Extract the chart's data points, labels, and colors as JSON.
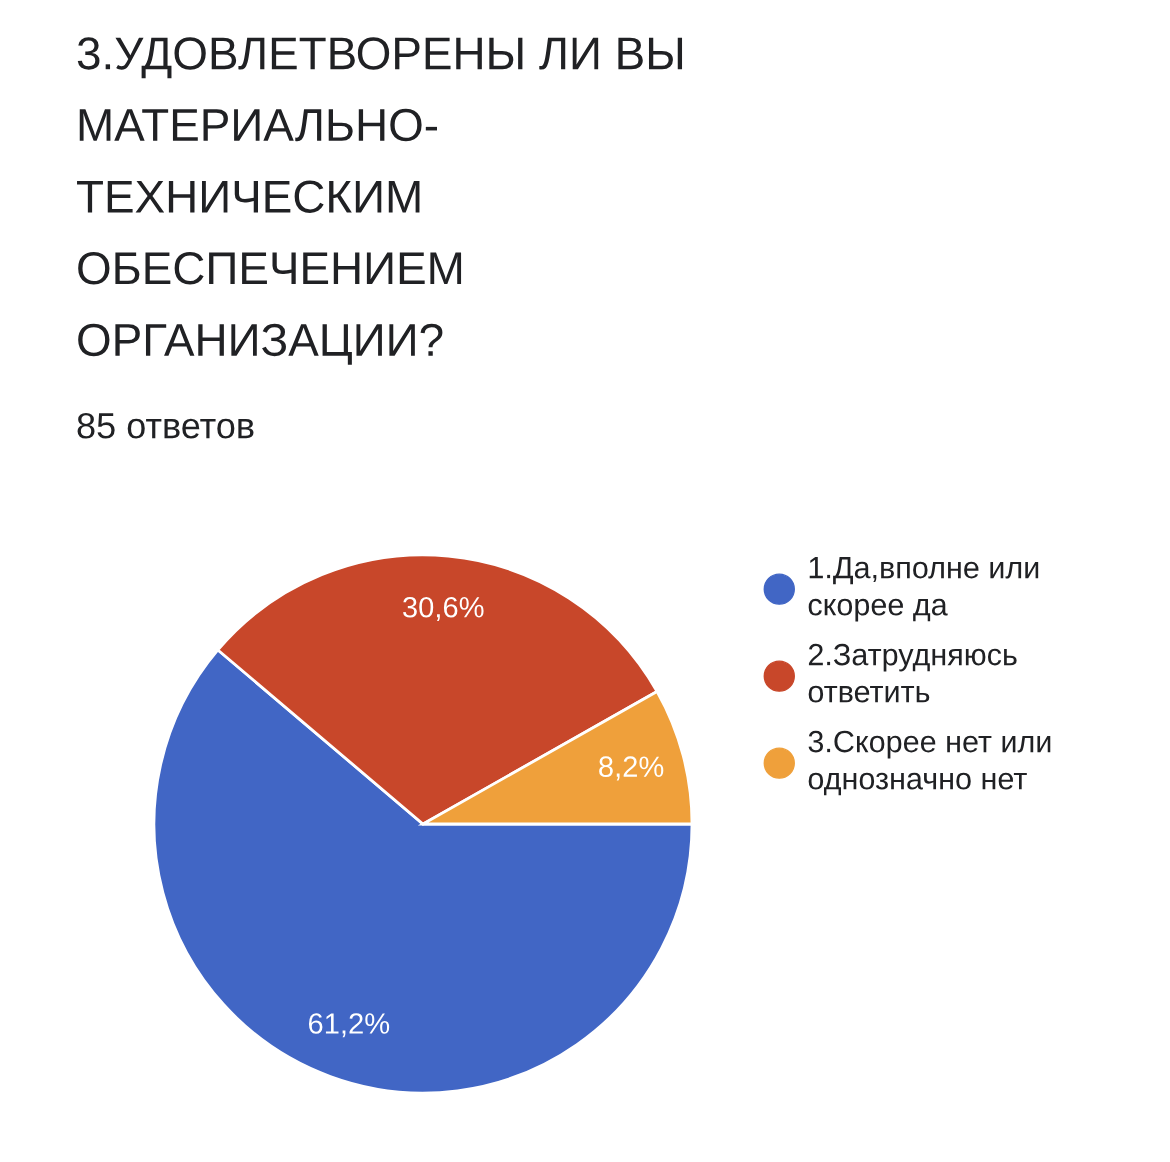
{
  "chart_data": {
    "type": "pie",
    "title": "3.УДОВЛЕТВОРЕНЫ ЛИ ВЫ\nМАТЕРИАЛЬНО-\nТЕХНИЧЕСКИМ\nОБЕСПЕЧЕНИЕМ\nОРГАНИЗАЦИИ?",
    "subtitle": "85 ответов",
    "categories": [
      "1.Да,вполне или\nскорее да",
      "2.Затрудняюсь\nответить",
      "3.Скорее нет или\nоднозначно нет"
    ],
    "values": [
      61.2,
      30.6,
      8.2
    ],
    "colors": [
      "#4166c5",
      "#c8472a",
      "#efa03b"
    ],
    "value_labels": [
      "61,2%",
      "30,6%",
      "8,2%"
    ],
    "legend": "right"
  }
}
